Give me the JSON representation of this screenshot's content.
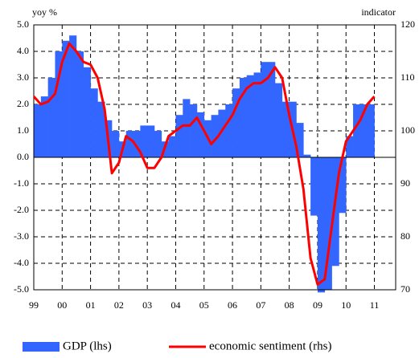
{
  "chart_data": {
    "type": "bar-line",
    "left_axis_label": "yoy %",
    "right_axis_label": "indicator",
    "categories": [
      "99",
      null,
      null,
      null,
      "00",
      null,
      null,
      null,
      "01",
      null,
      null,
      null,
      "02",
      null,
      null,
      null,
      "03",
      null,
      null,
      null,
      "04",
      null,
      null,
      null,
      "05",
      null,
      null,
      null,
      "06",
      null,
      null,
      null,
      "07",
      null,
      null,
      null,
      "08",
      null,
      null,
      null,
      "09",
      null,
      null,
      null,
      "10",
      null,
      null,
      null,
      "11",
      null,
      null
    ],
    "series": [
      {
        "name": "GDP (lhs)",
        "type": "bar",
        "color": "#3366ff",
        "axis": "y",
        "values": [
          2.0,
          2.3,
          3.0,
          4.0,
          4.4,
          4.6,
          4.0,
          3.4,
          2.6,
          2.1,
          1.4,
          1.0,
          0.6,
          1.0,
          1.0,
          1.2,
          1.2,
          1.0,
          0.6,
          0.8,
          1.6,
          2.2,
          2.0,
          1.7,
          1.4,
          1.6,
          1.8,
          2.0,
          2.6,
          3.0,
          3.1,
          3.2,
          3.6,
          3.6,
          2.8,
          2.1,
          2.1,
          1.3,
          0.1,
          -2.2,
          -5.1,
          -5.0,
          -4.1,
          -2.1,
          0.8,
          2.0,
          2.0,
          2.0,
          null,
          null,
          null
        ]
      },
      {
        "name": "economic sentiment (rhs)",
        "type": "line",
        "color": "#ff0000",
        "axis": "y2",
        "values": [
          106.5,
          105,
          105.5,
          107,
          113,
          116.5,
          115,
          113,
          112.5,
          110,
          104,
          92,
          94,
          99,
          98,
          96,
          93,
          93,
          95,
          99,
          100,
          101,
          101,
          102.5,
          100,
          97.5,
          99,
          101,
          103,
          106,
          108,
          109,
          109,
          110,
          112,
          110,
          103,
          97,
          89,
          76,
          71,
          72,
          82,
          92,
          98,
          100,
          102,
          105,
          106.5,
          null,
          null
        ]
      }
    ],
    "ylim": [
      -5,
      5
    ],
    "yticks": [
      {
        "value": -5,
        "label": "-5.0"
      },
      {
        "value": -4,
        "label": "-4.0"
      },
      {
        "value": -3,
        "label": "-3.0"
      },
      {
        "value": -2,
        "label": "-2.0"
      },
      {
        "value": -1,
        "label": "-1.0"
      },
      {
        "value": 0,
        "label": "0.0"
      },
      {
        "value": 1,
        "label": "1.0"
      },
      {
        "value": 2,
        "label": "2.0"
      },
      {
        "value": 3,
        "label": "3.0"
      },
      {
        "value": 4,
        "label": "4.0"
      },
      {
        "value": 5,
        "label": "5.0"
      }
    ],
    "y2lim": [
      70,
      120
    ],
    "y2ticks": [
      70,
      80,
      90,
      100,
      110,
      120
    ],
    "grid": true,
    "legend": "bottom"
  }
}
